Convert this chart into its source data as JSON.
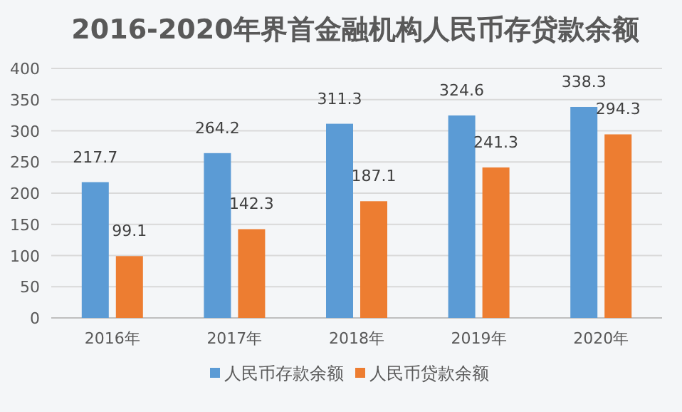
{
  "chart_data": {
    "type": "bar",
    "title": "2016-2020年界首金融机构人民币存贷款余额",
    "categories": [
      "2016年",
      "2017年",
      "2018年",
      "2019年",
      "2020年"
    ],
    "series": [
      {
        "name": "人民币存款余额",
        "color": "#5b9bd5",
        "values": [
          217.7,
          264.2,
          311.3,
          324.6,
          338.3
        ]
      },
      {
        "name": "人民币贷款余额",
        "color": "#ed7d31",
        "values": [
          99.1,
          142.3,
          187.1,
          241.3,
          294.3
        ]
      }
    ],
    "ylim": [
      0,
      400
    ],
    "yticks": [
      0,
      50,
      100,
      150,
      200,
      250,
      300,
      350,
      400
    ],
    "grid": "y",
    "legend": "bottom",
    "data_labels": true
  }
}
